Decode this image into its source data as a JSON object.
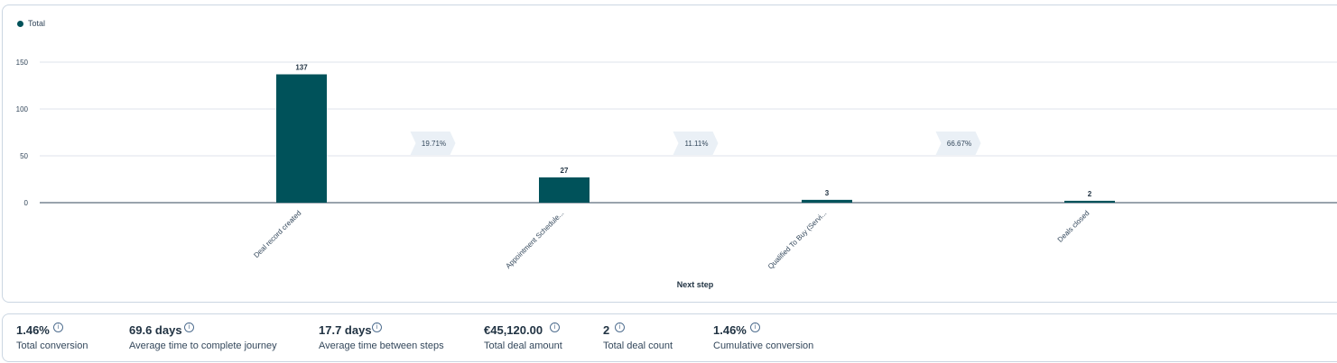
{
  "chart_data": {
    "type": "bar",
    "legend": [
      {
        "name": "Total",
        "color": "#00525a"
      }
    ],
    "categories": [
      "Deal record created",
      "Appointment Schedule...",
      "Qualified To Buy (Servi...",
      "Deals closed"
    ],
    "series": [
      {
        "name": "Total",
        "values": [
          137,
          27,
          3,
          2
        ],
        "color": "#00525a"
      }
    ],
    "conversion_rates": [
      "19.71%",
      "11.11%",
      "66.67%"
    ],
    "y_ticks": [
      "0",
      "50",
      "100",
      "150"
    ],
    "ylim": [
      0,
      150
    ],
    "xlabel": "Next step",
    "ylabel": "",
    "grid": true,
    "legend_position": "top-left"
  },
  "stats": [
    {
      "value": "1.46%",
      "label": "Total conversion"
    },
    {
      "value": "69.6 days",
      "label": "Average time to complete journey"
    },
    {
      "value": "17.7 days",
      "label": "Average time between steps"
    },
    {
      "value": "€45,120.00",
      "label": "Total deal amount"
    },
    {
      "value": "2",
      "label": "Total deal count"
    },
    {
      "value": "1.46%",
      "label": "Cumulative conversion"
    }
  ],
  "info_icon_glyph": "i"
}
